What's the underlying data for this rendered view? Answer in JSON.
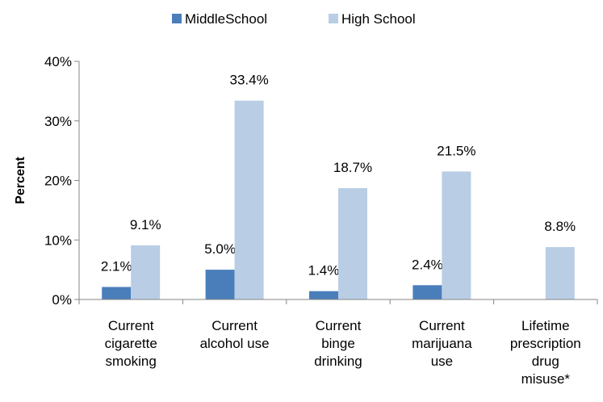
{
  "chart_data": {
    "type": "bar",
    "ylabel": "Percent",
    "ylim": [
      0,
      40
    ],
    "yticks": [
      0,
      10,
      20,
      30,
      40
    ],
    "ytick_suffix": "%",
    "grid": false,
    "legend_position": "top",
    "categories": [
      [
        "Current",
        "cigarette",
        "smoking"
      ],
      [
        "Current",
        "alcohol use"
      ],
      [
        "Current",
        "binge",
        "drinking"
      ],
      [
        "Current",
        "marijuana",
        "use"
      ],
      [
        "Lifetime",
        "prescription",
        "drug",
        "misuse*"
      ]
    ],
    "series": [
      {
        "name": "MiddleSchool",
        "color": "#4a7ebb",
        "values": [
          2.1,
          5.0,
          1.4,
          2.4,
          null
        ],
        "labels": [
          "2.1%",
          "5.0%",
          "1.4%",
          "2.4%",
          null
        ]
      },
      {
        "name": "High School",
        "color": "#b9cde5",
        "values": [
          9.1,
          33.4,
          18.7,
          21.5,
          8.8
        ],
        "labels": [
          "9.1%",
          "33.4%",
          "18.7%",
          "21.5%",
          "8.8%"
        ]
      }
    ]
  }
}
